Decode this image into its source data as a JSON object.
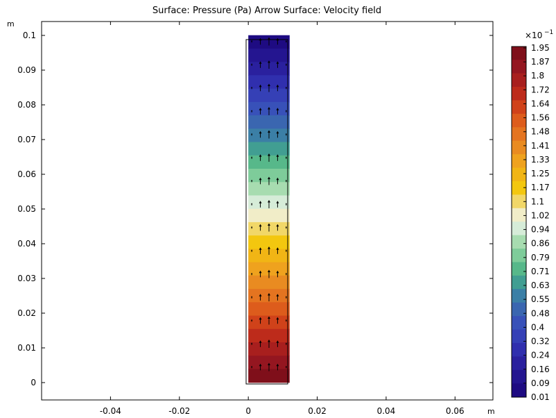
{
  "chart_data": {
    "type": "heatmap",
    "title": "Surface: Pressure (Pa)  Arrow Surface: Velocity field",
    "x_unit": "m",
    "y_unit": "m",
    "xlim": [
      -0.06,
      0.071
    ],
    "ylim": [
      -0.005,
      0.104
    ],
    "x_ticks": [
      -0.04,
      -0.02,
      0,
      0.02,
      0.04,
      0.06
    ],
    "x_tick_labels": [
      "-0.04",
      "-0.02",
      "0",
      "0.02",
      "0.04",
      "0.06"
    ],
    "y_ticks": [
      0,
      0.01,
      0.02,
      0.03,
      0.04,
      0.05,
      0.06,
      0.07,
      0.08,
      0.09,
      0.1
    ],
    "y_tick_labels": [
      "0",
      "0.01",
      "0.02",
      "0.03",
      "0.04",
      "0.05",
      "0.06",
      "0.07",
      "0.08",
      "0.09",
      "0.1"
    ],
    "domain": {
      "x": [
        0,
        0.012
      ],
      "y": [
        0,
        0.1
      ]
    },
    "pressure_gradient": "pressure increases from top (y=0.1, ~0.01) to bottom (y=0, ~1.95)",
    "arrows": {
      "direction": "+y",
      "columns_x": [
        0.001,
        0.0035,
        0.006,
        0.0085,
        0.011
      ],
      "column_relative_length": [
        0.3,
        0.8,
        1.0,
        0.8,
        0.3
      ],
      "rows_y": [
        0.0045,
        0.0112,
        0.0179,
        0.0246,
        0.0313,
        0.038,
        0.0447,
        0.0514,
        0.0581,
        0.0648,
        0.0715,
        0.0782,
        0.0849,
        0.0916,
        0.0983
      ]
    },
    "colorbar": {
      "multiplier_base": "×10",
      "multiplier_exp": "−1",
      "levels": [
        "1.95",
        "1.87",
        "1.8",
        "1.72",
        "1.64",
        "1.56",
        "1.48",
        "1.41",
        "1.33",
        "1.25",
        "1.17",
        "1.1",
        "1.02",
        "0.94",
        "0.86",
        "0.79",
        "0.71",
        "0.63",
        "0.55",
        "0.48",
        "0.4",
        "0.32",
        "0.24",
        "0.16",
        "0.09",
        "0.01"
      ],
      "colors": [
        "#7f0f1a",
        "#941620",
        "#a81f1e",
        "#bd2b1b",
        "#d0421a",
        "#dd5c1c",
        "#e47420",
        "#e98b21",
        "#efa21e",
        "#f1b515",
        "#f3c70f",
        "#f1d768",
        "#f1edc8",
        "#d6ecd8",
        "#a7dcb0",
        "#7ecc9a",
        "#57b88a",
        "#419e92",
        "#3b7fa6",
        "#3a66b0",
        "#3851b9",
        "#3540b6",
        "#302fae",
        "#2a209e",
        "#241590",
        "#1e0b82"
      ]
    },
    "grid": false
  }
}
